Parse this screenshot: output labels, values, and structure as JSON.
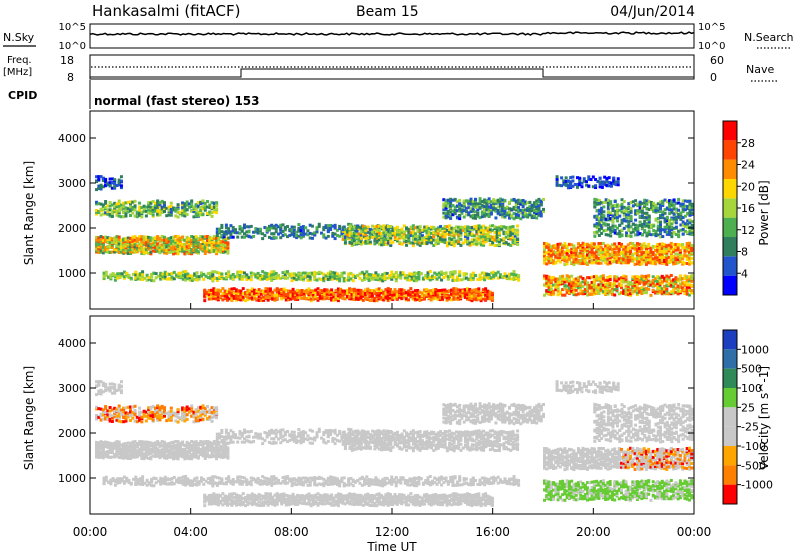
{
  "header": {
    "title_left": "Hankasalmi (fitACF)",
    "title_center": "Beam 15",
    "title_right": "04/Jun/2014"
  },
  "top_panel": {
    "left_label": "N.Sky",
    "right_label": "N.Search",
    "left_ticks": [
      "10^5",
      "10^0"
    ],
    "right_ticks": [
      "10^5",
      "10^0"
    ]
  },
  "freq_panel": {
    "left_label_line1": "Freq.",
    "left_label_line2": "[MHz]",
    "left_ticks": [
      "18",
      "8"
    ],
    "right_label": "Nave",
    "right_ticks": [
      "60",
      "0"
    ],
    "cpid_label": "CPID",
    "mode_text": "normal (fast stereo) 153"
  },
  "x_axis": {
    "title": "Time UT",
    "ticks": [
      "00:00",
      "04:00",
      "08:00",
      "12:00",
      "16:00",
      "20:00",
      "00:00"
    ]
  },
  "chart_data": [
    {
      "type": "heatmap",
      "name": "power",
      "ylabel": "Slant Range [km]",
      "yticks": [
        "1000",
        "2000",
        "3000",
        "4000"
      ],
      "ylim": [
        200,
        4600
      ],
      "xlim": [
        0,
        24
      ],
      "colorbar_label": "Power [dB]",
      "colorbar_ticks": [
        "4",
        "8",
        "12",
        "16",
        "20",
        "24",
        "28"
      ],
      "colorbar_colors": [
        "#0000ff",
        "#2255cc",
        "#2f7f5f",
        "#4caf50",
        "#a5d63b",
        "#ffd700",
        "#ff8c00",
        "#ff4500",
        "#ff0000"
      ]
    },
    {
      "type": "heatmap",
      "name": "velocity",
      "ylabel": "Slant Range [km]",
      "yticks": [
        "1000",
        "2000",
        "3000",
        "4000"
      ],
      "ylim": [
        200,
        4600
      ],
      "xlim": [
        0,
        24
      ],
      "colorbar_label": "Velocity [m s^-1]",
      "colorbar_ticks": [
        "1000",
        "500",
        "100",
        "25",
        "-25",
        "-100",
        "-500",
        "-1000"
      ],
      "colorbar_colors": [
        "#1c3fbf",
        "#2f6fa8",
        "#2e8b57",
        "#66cc33",
        "#c8c8c8",
        "#c8c8c8",
        "#ffa500",
        "#ff7f00",
        "#ff0000"
      ]
    }
  ]
}
